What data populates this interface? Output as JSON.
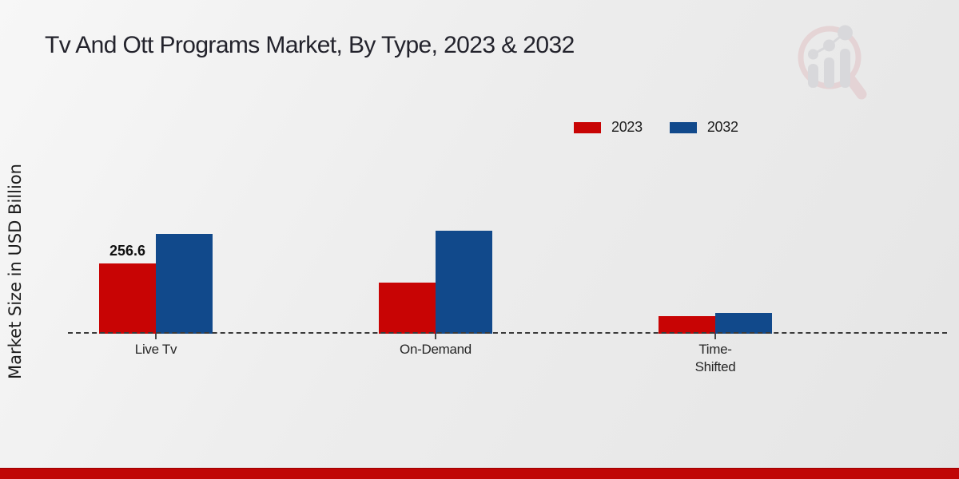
{
  "chart_data": {
    "type": "bar",
    "title": "Tv And Ott Programs Market, By Type, 2023 & 2032",
    "ylabel": "Market Size in USD Billion",
    "xlabel": "",
    "categories": [
      "Live Tv",
      "On-Demand",
      "Time-Shifted"
    ],
    "category_display_lines": [
      [
        "Live Tv"
      ],
      [
        "On-Demand"
      ],
      [
        "Time-",
        "Shifted"
      ]
    ],
    "series": [
      {
        "name": "2023",
        "color": "#c80404",
        "values": [
          256.6,
          186.6,
          64.1
        ]
      },
      {
        "name": "2032",
        "color": "#11498b",
        "values": [
          364.5,
          376.2,
          74.4
        ]
      }
    ],
    "value_labels": [
      {
        "series": "2023",
        "category": "Live Tv",
        "text": "256.6"
      }
    ],
    "ylim": [
      0,
      400
    ],
    "grid": false,
    "legend_position": "top-right",
    "baseline_style": "dashed"
  },
  "watermark": {
    "icon": "market-research-future-logo"
  },
  "footer": {
    "bar_color": "#c00606"
  }
}
